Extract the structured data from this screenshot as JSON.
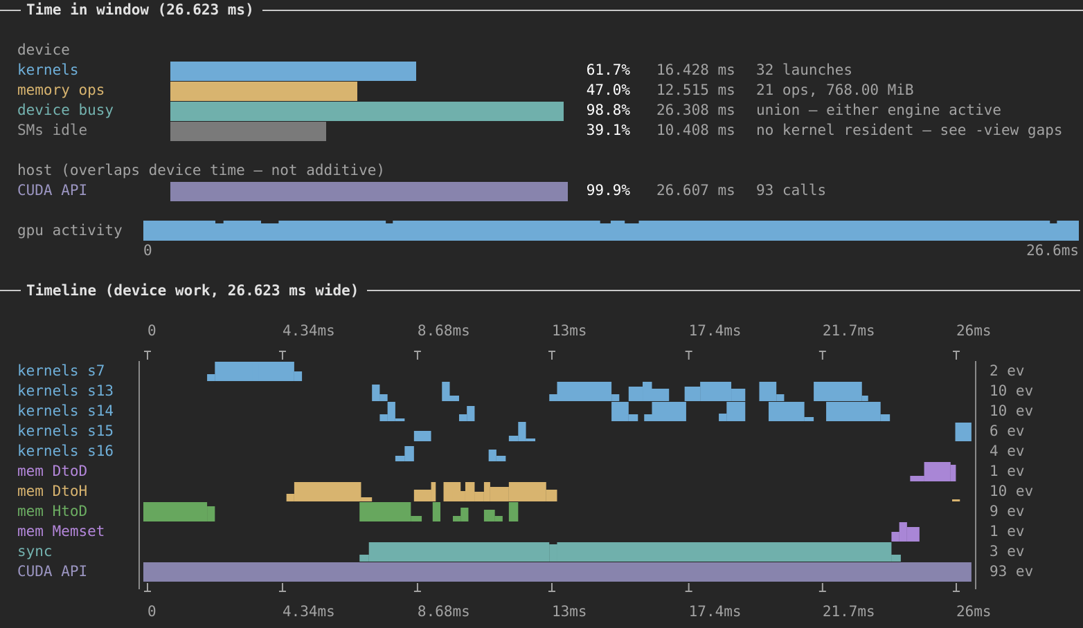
{
  "window": {
    "title": "Time in window (26.623 ms)"
  },
  "device_section": {
    "label": "device",
    "rows": [
      {
        "key": "kernels",
        "label": "kernels",
        "fraction": 0.617,
        "pct": "61.7%",
        "time": "16.428 ms",
        "detail": "32 launches",
        "color": "#6fabd6"
      },
      {
        "key": "memory-ops",
        "label": "memory ops",
        "fraction": 0.47,
        "pct": "47.0%",
        "time": "12.515 ms",
        "detail": "21 ops, 768.00 MiB",
        "color": "#d8b46f"
      },
      {
        "key": "device-busy",
        "label": "device busy",
        "fraction": 0.988,
        "pct": "98.8%",
        "time": "26.308 ms",
        "detail": "union — either engine active",
        "color": "#70b0ac"
      },
      {
        "key": "sms-idle",
        "label": "SMs idle",
        "fraction": 0.391,
        "pct": "39.1%",
        "time": "10.408 ms",
        "detail": "no kernel resident — see -view gaps",
        "color": "#7a7a7a"
      }
    ]
  },
  "host_section": {
    "label": "host (overlaps device time — not additive)",
    "rows": [
      {
        "key": "cuda-api",
        "label": "CUDA API",
        "fraction": 0.999,
        "pct": "99.9%",
        "time": "26.607 ms",
        "detail": "93 calls",
        "color": "#8884ad"
      }
    ]
  },
  "gpu_activity": {
    "label": "gpu activity",
    "start_label": "0",
    "end_label": "26.6ms",
    "dips_ms": [
      [
        2.05,
        2.28
      ],
      [
        3.35,
        3.85
      ],
      [
        6.9,
        7.1
      ],
      [
        13.0,
        13.3
      ],
      [
        13.7,
        14.1
      ],
      [
        25.8,
        26.0
      ]
    ]
  },
  "timeline": {
    "title": "Timeline (device work, 26.623 ms wide)",
    "total_ms": 26.623,
    "axis_ticks": [
      {
        "ms": 0,
        "label": "0"
      },
      {
        "ms": 4.34,
        "label": "4.34ms"
      },
      {
        "ms": 8.68,
        "label": "8.68ms"
      },
      {
        "ms": 13.0,
        "label": "13ms"
      },
      {
        "ms": 17.4,
        "label": "17.4ms"
      },
      {
        "ms": 21.7,
        "label": "21.7ms"
      },
      {
        "ms": 26.0,
        "label": "26ms"
      }
    ],
    "rows": [
      {
        "key": "kernels-s7",
        "label": "kernels s7",
        "count": "2 ev",
        "color": "#6fabd6",
        "segments": [
          [
            2.3,
            4.85,
            1.0
          ],
          [
            2.05,
            2.3,
            0.35
          ],
          [
            4.85,
            5.1,
            0.5
          ],
          [
            3.5,
            3.7,
            0.85
          ]
        ]
      },
      {
        "key": "kernels-s13",
        "label": "kernels s13",
        "count": "10 ev",
        "color": "#6fabd6",
        "segments": [
          [
            7.35,
            7.6,
            0.85
          ],
          [
            7.6,
            7.85,
            0.35
          ],
          [
            9.6,
            9.85,
            1.0
          ],
          [
            9.85,
            10.15,
            0.3
          ],
          [
            13.3,
            15.05,
            1.0
          ],
          [
            13.05,
            13.3,
            0.35
          ],
          [
            15.05,
            15.3,
            0.35
          ],
          [
            15.6,
            16.05,
            0.75
          ],
          [
            16.05,
            16.35,
            1.0
          ],
          [
            16.35,
            16.9,
            0.65
          ],
          [
            17.4,
            17.9,
            0.75
          ],
          [
            17.9,
            18.9,
            1.0
          ],
          [
            18.9,
            19.35,
            0.65
          ],
          [
            19.8,
            20.35,
            1.0
          ],
          [
            20.35,
            20.6,
            0.35
          ],
          [
            21.55,
            23.1,
            1.0
          ],
          [
            23.1,
            23.3,
            0.3
          ]
        ]
      },
      {
        "key": "kernels-s14",
        "label": "kernels s14",
        "count": "10 ev",
        "color": "#6fabd6",
        "segments": [
          [
            7.6,
            7.85,
            0.35
          ],
          [
            7.85,
            8.1,
            1.0
          ],
          [
            8.1,
            8.4,
            0.15
          ],
          [
            10.15,
            10.4,
            0.35
          ],
          [
            10.4,
            10.65,
            0.8
          ],
          [
            15.05,
            15.6,
            1.0
          ],
          [
            15.6,
            15.9,
            0.35
          ],
          [
            16.1,
            16.35,
            0.35
          ],
          [
            16.35,
            17.45,
            1.0
          ],
          [
            18.5,
            18.75,
            0.4
          ],
          [
            18.75,
            19.35,
            1.0
          ],
          [
            20.1,
            21.25,
            1.0
          ],
          [
            21.25,
            21.55,
            0.2
          ],
          [
            21.95,
            23.7,
            1.0
          ],
          [
            23.7,
            24.0,
            0.35
          ]
        ]
      },
      {
        "key": "kernels-s15",
        "label": "kernels s15",
        "count": "6 ev",
        "color": "#6fabd6",
        "segments": [
          [
            8.7,
            9.25,
            0.55
          ],
          [
            11.75,
            12.05,
            0.3
          ],
          [
            12.05,
            12.3,
            1.0
          ],
          [
            12.3,
            12.6,
            0.15
          ],
          [
            26.1,
            26.62,
            0.95
          ]
        ]
      },
      {
        "key": "kernels-s16",
        "label": "kernels s16",
        "count": "4 ev",
        "color": "#6fabd6",
        "segments": [
          [
            8.1,
            8.4,
            0.3
          ],
          [
            8.4,
            8.7,
            0.8
          ],
          [
            11.1,
            11.35,
            0.6
          ],
          [
            11.35,
            11.65,
            0.3
          ]
        ]
      },
      {
        "key": "mem-dtod",
        "label": "mem DtoD",
        "count": "1 ev",
        "color": "#a986d6",
        "segments": [
          [
            24.65,
            25.1,
            0.3
          ],
          [
            25.1,
            25.95,
            1.0
          ],
          [
            25.95,
            26.12,
            0.85
          ]
        ]
      },
      {
        "key": "mem-dtoh",
        "label": "mem DtoH",
        "count": "10 ev",
        "color": "#d8b46f",
        "segments": [
          [
            4.6,
            4.85,
            0.4
          ],
          [
            4.85,
            7.0,
            1.0
          ],
          [
            7.0,
            7.35,
            0.2
          ],
          [
            8.7,
            9.25,
            0.6
          ],
          [
            9.25,
            9.4,
            1.0
          ],
          [
            9.65,
            10.2,
            1.0
          ],
          [
            9.95,
            10.35,
            0.55
          ],
          [
            10.35,
            10.65,
            1.0
          ],
          [
            10.65,
            10.95,
            0.5
          ],
          [
            10.95,
            11.15,
            1.0
          ],
          [
            11.15,
            11.75,
            0.75
          ],
          [
            11.75,
            12.95,
            1.0
          ],
          [
            12.95,
            13.3,
            0.6
          ],
          [
            26.0,
            26.25,
            0.12
          ]
        ]
      },
      {
        "key": "mem-htod",
        "label": "mem HtoD",
        "count": "9 ev",
        "color": "#67a75e",
        "segments": [
          [
            0.0,
            2.05,
            1.0
          ],
          [
            2.05,
            2.3,
            0.8
          ],
          [
            6.95,
            8.6,
            1.0
          ],
          [
            8.6,
            8.95,
            0.3
          ],
          [
            9.3,
            9.55,
            1.0
          ],
          [
            9.95,
            10.2,
            0.3
          ],
          [
            10.2,
            10.45,
            0.7
          ],
          [
            10.95,
            11.3,
            0.6
          ],
          [
            11.3,
            11.55,
            0.3
          ],
          [
            11.75,
            12.05,
            1.0
          ]
        ]
      },
      {
        "key": "mem-memset",
        "label": "mem Memset",
        "count": "1 ev",
        "color": "#a986d6",
        "segments": [
          [
            24.05,
            24.3,
            0.5
          ],
          [
            24.3,
            24.55,
            1.0
          ],
          [
            24.55,
            24.95,
            0.75
          ]
        ]
      },
      {
        "key": "sync",
        "label": "sync",
        "count": "3 ev",
        "color": "#70b0ac",
        "segments": [
          [
            6.95,
            7.25,
            0.35
          ],
          [
            7.25,
            13.05,
            1.0
          ],
          [
            13.05,
            13.3,
            0.9
          ],
          [
            13.3,
            24.05,
            1.0
          ],
          [
            24.05,
            24.35,
            0.35
          ]
        ]
      },
      {
        "key": "cuda-api-row",
        "label": "CUDA API",
        "count": "93 ev",
        "color": "#8884ad",
        "segments": [
          [
            0.0,
            26.62,
            1.0
          ]
        ]
      }
    ]
  }
}
